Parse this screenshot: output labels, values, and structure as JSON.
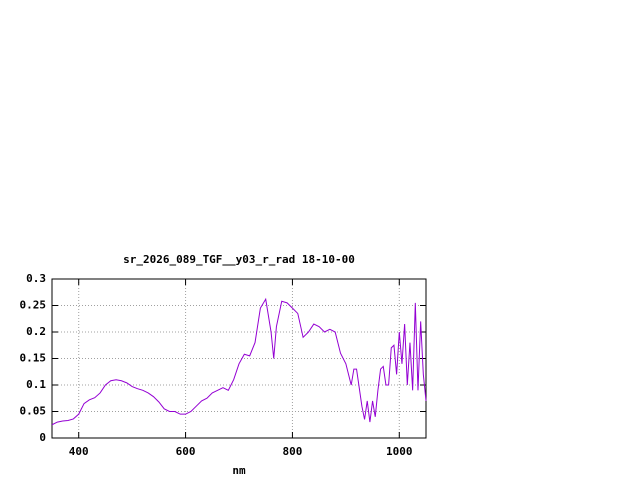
{
  "chart_data": {
    "type": "line",
    "title": "sr_2026_089_TGF__y03_r_rad 18-10-00",
    "x_label": "nm",
    "x": [
      350,
      360,
      370,
      380,
      390,
      400,
      410,
      420,
      430,
      440,
      450,
      460,
      470,
      480,
      490,
      500,
      510,
      520,
      530,
      540,
      550,
      560,
      570,
      580,
      590,
      600,
      610,
      620,
      630,
      640,
      650,
      660,
      670,
      680,
      690,
      700,
      710,
      720,
      730,
      740,
      750,
      760,
      765,
      770,
      780,
      790,
      800,
      810,
      820,
      830,
      840,
      850,
      860,
      870,
      880,
      890,
      900,
      910,
      915,
      920,
      930,
      935,
      940,
      945,
      950,
      955,
      960,
      965,
      970,
      975,
      980,
      985,
      990,
      995,
      1000,
      1005,
      1010,
      1015,
      1020,
      1025,
      1030,
      1035,
      1040,
      1045,
      1050
    ],
    "series": [
      {
        "color": "#9400d3",
        "values": [
          0.025,
          0.03,
          0.032,
          0.033,
          0.036,
          0.045,
          0.065,
          0.072,
          0.076,
          0.085,
          0.1,
          0.108,
          0.11,
          0.108,
          0.104,
          0.097,
          0.093,
          0.09,
          0.085,
          0.078,
          0.068,
          0.055,
          0.05,
          0.05,
          0.045,
          0.045,
          0.05,
          0.06,
          0.07,
          0.075,
          0.085,
          0.09,
          0.095,
          0.09,
          0.11,
          0.14,
          0.158,
          0.155,
          0.18,
          0.245,
          0.262,
          0.2,
          0.15,
          0.21,
          0.258,
          0.255,
          0.245,
          0.235,
          0.19,
          0.2,
          0.215,
          0.21,
          0.2,
          0.205,
          0.2,
          0.16,
          0.14,
          0.1,
          0.13,
          0.13,
          0.06,
          0.035,
          0.07,
          0.03,
          0.07,
          0.04,
          0.09,
          0.13,
          0.135,
          0.1,
          0.1,
          0.17,
          0.175,
          0.12,
          0.2,
          0.14,
          0.215,
          0.1,
          0.18,
          0.09,
          0.255,
          0.09,
          0.22,
          0.12,
          0.07
        ]
      }
    ],
    "xlim": [
      350,
      1050
    ],
    "xticks": [
      400,
      600,
      800,
      1000
    ],
    "ylim": [
      0,
      0.3
    ],
    "yticks": [
      0,
      0.05,
      0.1,
      0.15,
      0.2,
      0.25,
      0.3
    ],
    "grid": true
  }
}
